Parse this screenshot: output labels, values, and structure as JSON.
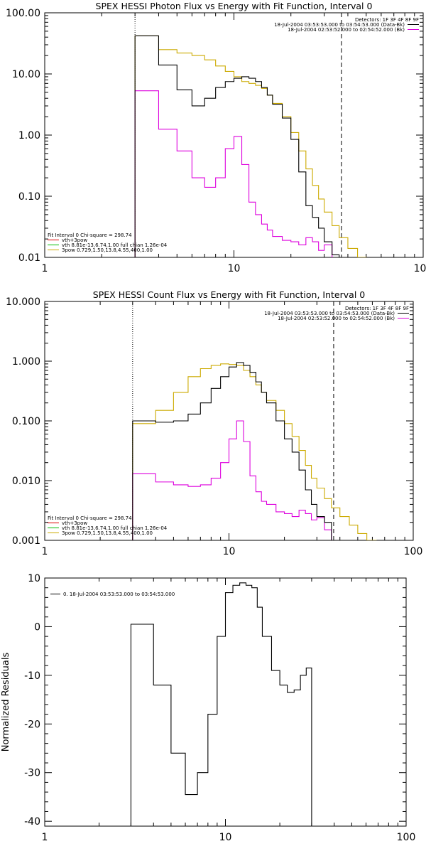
{
  "chart_data": [
    {
      "type": "line",
      "title": "SPEX HESSI Photon Flux vs Energy with Fit Function, Interval 0",
      "xscale": "log",
      "yscale": "log",
      "xlim": [
        1,
        100
      ],
      "ylim": [
        0.01,
        100
      ],
      "x_tick_labels": [
        "1",
        "10",
        "100"
      ],
      "y_ticks": [
        0.01,
        0.1,
        1,
        10,
        100
      ],
      "y_tick_labels": [
        "0.01",
        "0.10",
        "1.00",
        "10.00",
        "100.00"
      ],
      "vlines": [
        {
          "x": 3,
          "style": "dotted"
        },
        {
          "x": 37,
          "style": "dashed"
        }
      ],
      "legend_top_right": [
        {
          "label": "Detectors: 1F 3F 4F 8F 9F",
          "color": "#000000",
          "line": false
        },
        {
          "label": "18-Jul-2004 03:53:53.000 to 03:54:53.000 (Data-Bk)",
          "color": "#000000",
          "line": true
        },
        {
          "label": "18-Jul-2004 02:53:52.000 to 02:54:52.000 (Bk)",
          "color": "#dd00dd",
          "line": true
        }
      ],
      "legend_bottom_left": [
        {
          "label": "Fit Interval 0   Chi-square = 298.74",
          "color": "#000000",
          "line": false
        },
        {
          "label": "vth+3pow",
          "color": "#dd0000",
          "line": true
        },
        {
          "label": "vth 8.81e-13,6.74,1.00  full chian 1.26e-04",
          "color": "#00bb00",
          "line": true
        },
        {
          "label": "3pow 0.729,1.50,13.8,4.55,400,1.00",
          "color": "#ccaa00",
          "line": true
        }
      ],
      "edges": [
        3,
        4,
        5,
        6,
        7,
        8,
        9,
        10,
        11,
        12,
        13,
        14,
        15,
        16,
        18,
        20,
        22,
        24,
        26,
        28,
        30,
        33,
        36,
        40,
        45,
        50,
        56
      ],
      "series": [
        {
          "name": "Data-Bk",
          "color": "#000000",
          "values": [
            42,
            14,
            5.5,
            3,
            4,
            6,
            7.5,
            8.5,
            9,
            8.5,
            7.5,
            6,
            4.5,
            3.2,
            1.9,
            0.85,
            0.25,
            0.07,
            0.045,
            0.03,
            0.018,
            0.011
          ]
        },
        {
          "name": "Bk",
          "color": "#dd00dd",
          "values": [
            5.3,
            1.25,
            0.55,
            0.2,
            0.14,
            0.2,
            0.6,
            0.95,
            0.33,
            0.08,
            0.05,
            0.035,
            0.028,
            0.022,
            0.019,
            0.018,
            0.016,
            0.021,
            0.018,
            0.013,
            0.016
          ]
        },
        {
          "name": "Fit",
          "color": "#ccaa00",
          "values": [
            42,
            25,
            22,
            20,
            17,
            13.5,
            11,
            9,
            7.5,
            7,
            6.5,
            5.8,
            4.5,
            3.3,
            2,
            1.1,
            0.55,
            0.28,
            0.15,
            0.09,
            0.055,
            0.033,
            0.021,
            0.014,
            0.01,
            0.0075
          ]
        }
      ]
    },
    {
      "type": "line",
      "title": "SPEX HESSI Count Flux vs Energy with Fit Function, Interval 0",
      "xscale": "log",
      "yscale": "log",
      "xlim": [
        1,
        100
      ],
      "ylim": [
        0.001,
        10
      ],
      "x_tick_labels": [
        "1",
        "10",
        "100"
      ],
      "y_ticks": [
        0.001,
        0.01,
        0.1,
        1,
        10
      ],
      "y_tick_labels": [
        "0.001",
        "0.010",
        "0.100",
        "1.000",
        "10.000"
      ],
      "vlines": [
        {
          "x": 3,
          "style": "dotted"
        },
        {
          "x": 37,
          "style": "dashed"
        }
      ],
      "legend_top_right": [
        {
          "label": "Detectors: 1F 3F 4F 8F 9F",
          "color": "#000000",
          "line": false
        },
        {
          "label": "18-Jul-2004 03:53:53.000 to 03:54:53.000 (Data-Bk)",
          "color": "#000000",
          "line": true
        },
        {
          "label": "18-Jul-2004 02:53:52.000 to 02:54:52.000 (Bk)",
          "color": "#dd00dd",
          "line": true
        }
      ],
      "legend_bottom_left": [
        {
          "label": "Fit Interval 0   Chi-square = 298.74",
          "color": "#000000",
          "line": false
        },
        {
          "label": "vth+3pow",
          "color": "#dd0000",
          "line": true
        },
        {
          "label": "vth 8.81e-13,6.74,1.00  full chian 1.26e-04",
          "color": "#00bb00",
          "line": true
        },
        {
          "label": "3pow 0.729,1.50,13.8,4.55,400,1.00",
          "color": "#ccaa00",
          "line": true
        }
      ],
      "edges": [
        3,
        4,
        5,
        6,
        7,
        8,
        9,
        10,
        11,
        12,
        13,
        14,
        15,
        16,
        18,
        20,
        22,
        24,
        26,
        28,
        30,
        33,
        36,
        40,
        45,
        50,
        56,
        63
      ],
      "series": [
        {
          "name": "Data-Bk",
          "color": "#000000",
          "values": [
            0.1,
            0.095,
            0.1,
            0.13,
            0.2,
            0.35,
            0.55,
            0.8,
            0.95,
            0.85,
            0.65,
            0.45,
            0.3,
            0.2,
            0.1,
            0.05,
            0.03,
            0.015,
            0.007,
            0.004,
            0.0025,
            0.002
          ]
        },
        {
          "name": "Bk",
          "color": "#dd00dd",
          "values": [
            0.013,
            0.0095,
            0.0085,
            0.008,
            0.0085,
            0.011,
            0.02,
            0.05,
            0.1,
            0.045,
            0.012,
            0.0065,
            0.0045,
            0.004,
            0.003,
            0.0028,
            0.0025,
            0.0032,
            0.0028,
            0.0022,
            0.0024,
            0.0015
          ]
        },
        {
          "name": "Fit",
          "color": "#ccaa00",
          "values": [
            0.09,
            0.15,
            0.3,
            0.55,
            0.75,
            0.85,
            0.9,
            0.88,
            0.85,
            0.7,
            0.55,
            0.4,
            0.3,
            0.22,
            0.15,
            0.09,
            0.055,
            0.032,
            0.018,
            0.011,
            0.0075,
            0.005,
            0.0035,
            0.0025,
            0.0018,
            0.0013,
            0.001
          ]
        }
      ]
    },
    {
      "type": "line",
      "title": "",
      "ylabel": "Normalized Residuals",
      "xscale": "log",
      "yscale": "linear",
      "xlim": [
        1,
        100
      ],
      "ylim": [
        -41,
        10
      ],
      "x_tick_labels": [
        "1",
        "10",
        "100"
      ],
      "y_ticks": [
        -40,
        -30,
        -20,
        -10,
        0,
        10
      ],
      "y_tick_labels": [
        "-40",
        "-30",
        "-20",
        "-10",
        "0",
        "10"
      ],
      "vlines": [],
      "legend_top_left": [
        {
          "label": "0. 18-Jul-2004 03:53:53.000 to 03:54:53.000",
          "color": "#000000",
          "line": true
        }
      ],
      "edges": [
        3,
        4,
        5,
        6,
        7,
        8,
        9,
        10,
        11,
        12,
        13,
        14,
        15,
        16,
        18,
        20,
        22,
        24,
        26,
        28,
        30,
        33,
        36
      ],
      "series": [
        {
          "name": "0. 18-Jul-2004 03:53:53.000 to 03:54:53.000",
          "color": "#000000",
          "values": [
            0.5,
            -12,
            -26,
            -34.5,
            -30,
            -18,
            -2,
            7,
            8.5,
            9,
            8.5,
            8,
            4,
            -2,
            -9,
            -12,
            -13.5,
            -13,
            -10,
            -8.5
          ]
        }
      ]
    }
  ]
}
